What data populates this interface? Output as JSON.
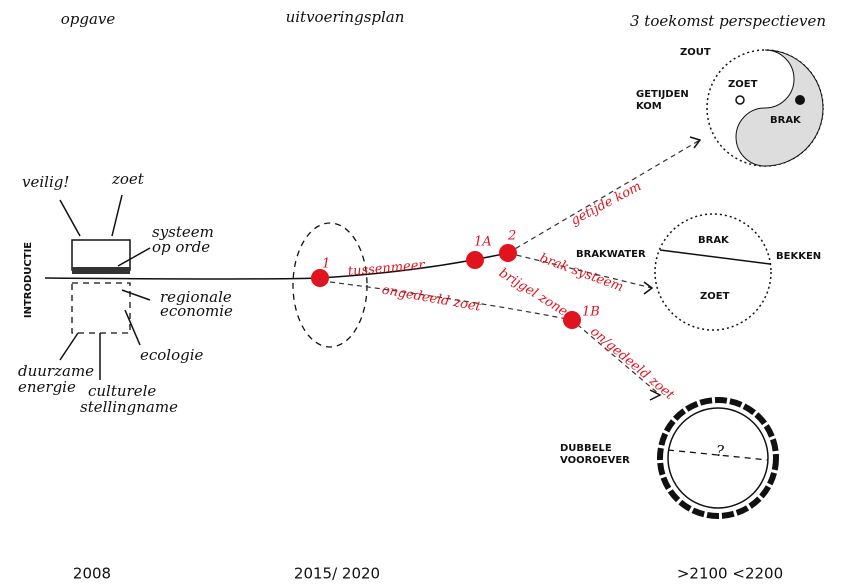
{
  "header": {
    "columns": [
      "opgave",
      "uitvoeringsplan",
      "3 toekomst perspectieven"
    ]
  },
  "years": [
    "2008",
    "2015/ 2020",
    ">2100 <2200"
  ],
  "introduction": {
    "label": "INTRODUCTIE",
    "themes": [
      {
        "lines": [
          "veilig!"
        ]
      },
      {
        "lines": [
          "zoet"
        ]
      },
      {
        "lines": [
          "systeem",
          "op orde"
        ]
      },
      {
        "lines": [
          "regionale",
          "economie"
        ]
      },
      {
        "lines": [
          "ecologie"
        ]
      },
      {
        "lines": [
          "duurzame",
          "energie"
        ]
      },
      {
        "lines": [
          "culturele",
          "stellingname"
        ]
      }
    ]
  },
  "route": {
    "points": [
      "1",
      "1A",
      "2",
      "1B"
    ],
    "labels": [
      "tussenmeer",
      "ongedeeld zoet",
      "getijde kom",
      "brak systeem",
      "brijgel zone",
      "on/gedeeld zoet"
    ]
  },
  "scenarios": [
    {
      "labels": [
        "ZOUT",
        "ZOET",
        "BRAK"
      ],
      "caption": [
        "GETIJDEN",
        "KOM"
      ]
    },
    {
      "labels": [
        "BRAKWATER",
        "BRAK",
        "BEKKEN",
        "ZOET"
      ]
    },
    {
      "labels": [
        "?"
      ],
      "caption": [
        "DUBBELE",
        "VOOROEVER"
      ]
    }
  ]
}
